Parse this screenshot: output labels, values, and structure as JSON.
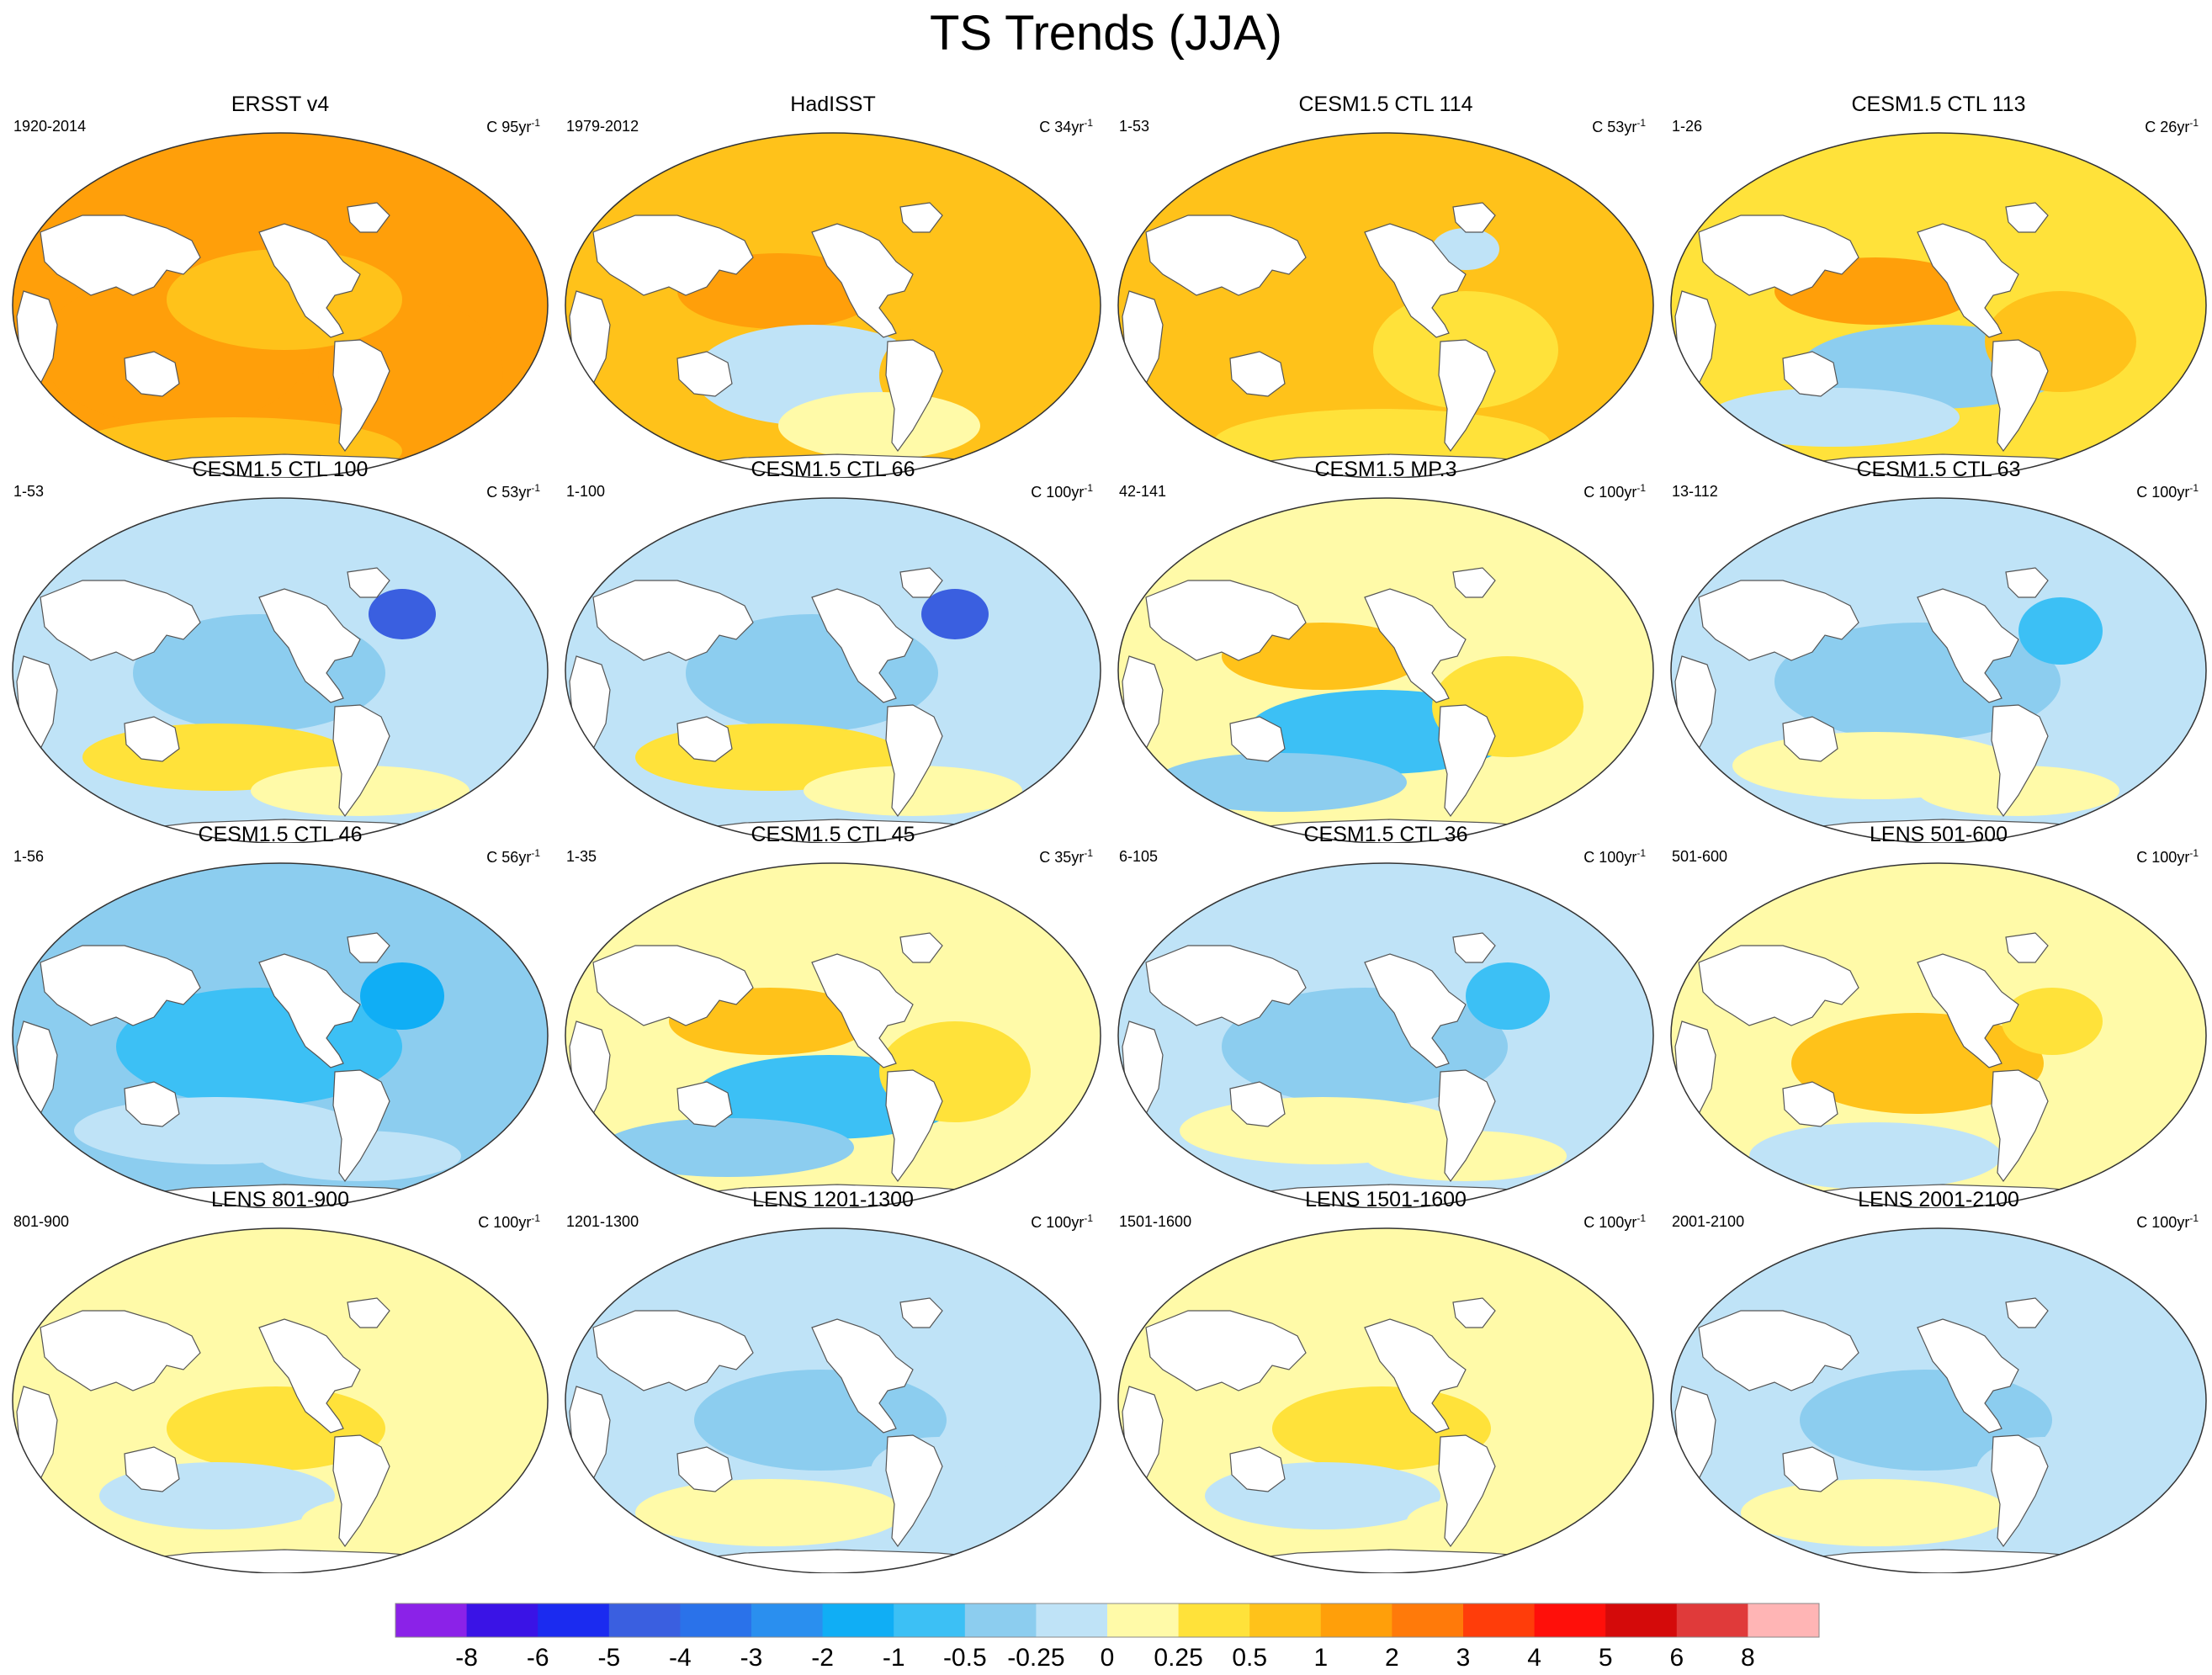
{
  "title": "TS Trends (JJA)",
  "units_prefix": "C",
  "units_suffix": "yr",
  "units_exp": "-1",
  "colorbar": {
    "labels": [
      "-8",
      "-6",
      "-5",
      "-4",
      "-3",
      "-2",
      "-1",
      "-0.5",
      "-0.25",
      "0",
      "0.25",
      "0.5",
      "1",
      "2",
      "3",
      "4",
      "5",
      "6",
      "8"
    ],
    "colors": [
      "#8b22e8",
      "#3a13e6",
      "#1b2bf0",
      "#3a5fe0",
      "#2a72ea",
      "#2a8fef",
      "#10aef5",
      "#3cc0f5",
      "#8ccdef",
      "#bfe3f7",
      "#fffaa8",
      "#ffe23a",
      "#ffc21a",
      "#ff9f0a",
      "#ff7a0a",
      "#ff3d0a",
      "#ff0f0a",
      "#d40a0a",
      "#e03a3a",
      "#ffb5b5"
    ]
  },
  "chart_data": [
    {
      "type": "heatmap",
      "title": "ERSST v4",
      "period": "1920-2014",
      "units_value": "95",
      "pattern": "warm",
      "base_level": 13
    },
    {
      "type": "heatmap",
      "title": "HadISST",
      "period": "1979-2012",
      "units_value": "34",
      "pattern": "mixed_warm",
      "base_level": 12
    },
    {
      "type": "heatmap",
      "title": "CESM1.5 CTL 114",
      "period": "1-53",
      "units_value": "53",
      "pattern": "warm_mod",
      "base_level": 12
    },
    {
      "type": "heatmap",
      "title": "CESM1.5 CTL 113",
      "period": "1-26",
      "units_value": "26",
      "pattern": "mixed",
      "base_level": 11
    },
    {
      "type": "heatmap",
      "title": "CESM1.5 CTL 100",
      "period": "1-53",
      "units_value": "53",
      "pattern": "cool_strong",
      "base_level": 9
    },
    {
      "type": "heatmap",
      "title": "CESM1.5 CTL 66",
      "period": "1-100",
      "units_value": "100",
      "pattern": "cool_strong",
      "base_level": 9
    },
    {
      "type": "heatmap",
      "title": "CESM1.5 MP.3",
      "period": "42-141",
      "units_value": "100",
      "pattern": "mixed",
      "base_level": 10
    },
    {
      "type": "heatmap",
      "title": "CESM1.5 CTL 63",
      "period": "13-112",
      "units_value": "100",
      "pattern": "cool",
      "base_level": 9
    },
    {
      "type": "heatmap",
      "title": "CESM1.5 CTL 46",
      "period": "1-56",
      "units_value": "56",
      "pattern": "cool",
      "base_level": 8
    },
    {
      "type": "heatmap",
      "title": "CESM1.5 CTL 45",
      "period": "1-35",
      "units_value": "35",
      "pattern": "mixed",
      "base_level": 10
    },
    {
      "type": "heatmap",
      "title": "CESM1.5 CTL 36",
      "period": "6-105",
      "units_value": "100",
      "pattern": "cool",
      "base_level": 9
    },
    {
      "type": "heatmap",
      "title": "LENS 501-600",
      "period": "501-600",
      "units_value": "100",
      "pattern": "weak_warm",
      "base_level": 10
    },
    {
      "type": "heatmap",
      "title": "LENS 801-900",
      "period": "801-900",
      "units_value": "100",
      "pattern": "weak",
      "base_level": 10
    },
    {
      "type": "heatmap",
      "title": "LENS 1201-1300",
      "period": "1201-1300",
      "units_value": "100",
      "pattern": "weak_cool",
      "base_level": 9
    },
    {
      "type": "heatmap",
      "title": "LENS 1501-1600",
      "period": "1501-1600",
      "units_value": "100",
      "pattern": "weak",
      "base_level": 10
    },
    {
      "type": "heatmap",
      "title": "LENS 2001-2100",
      "period": "2001-2100",
      "units_value": "100",
      "pattern": "weak_cool",
      "base_level": 9
    }
  ]
}
